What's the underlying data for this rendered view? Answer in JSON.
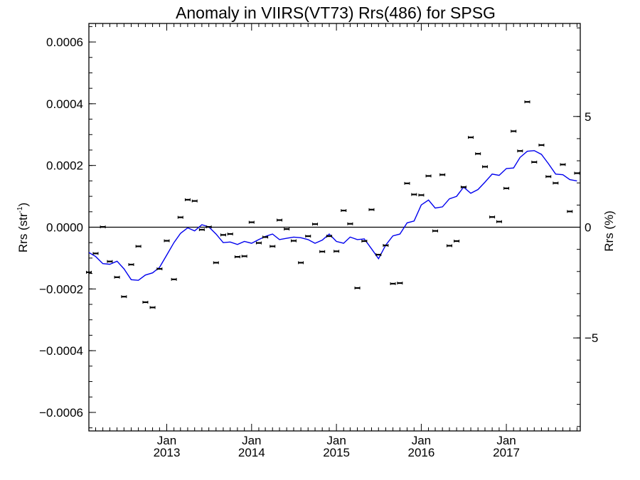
{
  "chart_data": {
    "type": "scatter",
    "title": "Anomaly in VIIRS(VT73) Rrs(486) for SPSG",
    "ylabel": "Rrs (str",
    "ylabel_sup": "-1",
    "ylabel_close": ")",
    "y2label": "Rrs (%)",
    "xlim": [
      "2012-02-01",
      "2017-11-15"
    ],
    "ylim": [
      -0.00066,
      0.00066
    ],
    "y2lim": [
      -9.2,
      9.2
    ],
    "grid": false,
    "y_ticks": [
      {
        "value": 0.0006,
        "label": "0.0006"
      },
      {
        "value": 0.0004,
        "label": "0.0004"
      },
      {
        "value": 0.0002,
        "label": "0.0002"
      },
      {
        "value": 0.0,
        "label": "0.0000"
      },
      {
        "value": -0.0002,
        "label": "−0.0002"
      },
      {
        "value": -0.0004,
        "label": "−0.0004"
      },
      {
        "value": -0.0006,
        "label": "−0.0006"
      }
    ],
    "y2_ticks": [
      {
        "value": 5,
        "label": "5"
      },
      {
        "value": 0,
        "label": "0"
      },
      {
        "value": -5,
        "label": "−5"
      }
    ],
    "x_ticks": [
      {
        "date": "2013-01-01",
        "month": "Jan",
        "year": "2013"
      },
      {
        "date": "2014-01-01",
        "month": "Jan",
        "year": "2014"
      },
      {
        "date": "2015-01-01",
        "month": "Jan",
        "year": "2015"
      },
      {
        "date": "2016-01-01",
        "month": "Jan",
        "year": "2016"
      },
      {
        "date": "2017-01-01",
        "month": "Jan",
        "year": "2017"
      }
    ],
    "series": [
      {
        "kind": "points",
        "color": "#000000",
        "points": [
          {
            "x": "2012-02-01",
            "y": -0.000146
          },
          {
            "x": "2012-03-01",
            "y": -8.5e-05
          },
          {
            "x": "2012-04-01",
            "y": 1e-06
          },
          {
            "x": "2012-05-01",
            "y": -0.000111
          },
          {
            "x": "2012-06-01",
            "y": -0.000162
          },
          {
            "x": "2012-07-01",
            "y": -0.000225
          },
          {
            "x": "2012-08-01",
            "y": -0.000121
          },
          {
            "x": "2012-09-01",
            "y": -6.2e-05
          },
          {
            "x": "2012-10-01",
            "y": -0.000243
          },
          {
            "x": "2012-11-01",
            "y": -0.00026
          },
          {
            "x": "2012-12-01",
            "y": -0.000135
          },
          {
            "x": "2013-01-01",
            "y": -4.4e-05
          },
          {
            "x": "2013-02-01",
            "y": -0.000169
          },
          {
            "x": "2013-03-01",
            "y": 3.2e-05
          },
          {
            "x": "2013-04-01",
            "y": 8.9e-05
          },
          {
            "x": "2013-05-01",
            "y": 8.5e-05
          },
          {
            "x": "2013-06-01",
            "y": -8e-06
          },
          {
            "x": "2013-07-01",
            "y": 1e-06
          },
          {
            "x": "2013-08-01",
            "y": -0.000115
          },
          {
            "x": "2013-09-01",
            "y": -2.5e-05
          },
          {
            "x": "2013-10-01",
            "y": -2.2e-05
          },
          {
            "x": "2013-11-01",
            "y": -9.6e-05
          },
          {
            "x": "2013-12-01",
            "y": -9.4e-05
          },
          {
            "x": "2014-01-01",
            "y": 1.6e-05
          },
          {
            "x": "2014-02-01",
            "y": -5.1e-05
          },
          {
            "x": "2014-03-01",
            "y": -3.2e-05
          },
          {
            "x": "2014-04-01",
            "y": -6.2e-05
          },
          {
            "x": "2014-05-01",
            "y": 2.3e-05
          },
          {
            "x": "2014-06-01",
            "y": -6e-06
          },
          {
            "x": "2014-07-01",
            "y": -4.4e-05
          },
          {
            "x": "2014-08-01",
            "y": -0.000115
          },
          {
            "x": "2014-09-01",
            "y": -2.9e-05
          },
          {
            "x": "2014-10-01",
            "y": 1e-05
          },
          {
            "x": "2014-11-01",
            "y": -7.9e-05
          },
          {
            "x": "2014-12-01",
            "y": -2.9e-05
          },
          {
            "x": "2015-01-01",
            "y": -7.8e-05
          },
          {
            "x": "2015-02-01",
            "y": 5.4e-05
          },
          {
            "x": "2015-03-01",
            "y": 1.1e-05
          },
          {
            "x": "2015-04-01",
            "y": -0.000197
          },
          {
            "x": "2015-05-01",
            "y": -4.5e-05
          },
          {
            "x": "2015-06-01",
            "y": 5.7e-05
          },
          {
            "x": "2015-07-01",
            "y": -8.9e-05
          },
          {
            "x": "2015-08-01",
            "y": -5.9e-05
          },
          {
            "x": "2015-09-01",
            "y": -0.000183
          },
          {
            "x": "2015-10-01",
            "y": -0.000181
          },
          {
            "x": "2015-11-01",
            "y": 0.000142
          },
          {
            "x": "2015-12-01",
            "y": 0.000106
          },
          {
            "x": "2016-01-01",
            "y": 0.000104
          },
          {
            "x": "2016-02-01",
            "y": 0.000166
          },
          {
            "x": "2016-03-01",
            "y": -1.2e-05
          },
          {
            "x": "2016-04-01",
            "y": 0.00017
          },
          {
            "x": "2016-05-01",
            "y": -6e-05
          },
          {
            "x": "2016-06-01",
            "y": -4.5e-05
          },
          {
            "x": "2016-07-01",
            "y": 0.00013
          },
          {
            "x": "2016-08-01",
            "y": 0.000291
          },
          {
            "x": "2016-09-01",
            "y": 0.000238
          },
          {
            "x": "2016-10-01",
            "y": 0.000196
          },
          {
            "x": "2016-11-01",
            "y": 3.3e-05
          },
          {
            "x": "2016-12-01",
            "y": 1.8e-05
          },
          {
            "x": "2017-01-01",
            "y": 0.000126
          },
          {
            "x": "2017-02-01",
            "y": 0.000311
          },
          {
            "x": "2017-03-01",
            "y": 0.000247
          },
          {
            "x": "2017-04-01",
            "y": 0.000406
          },
          {
            "x": "2017-05-01",
            "y": 0.000211
          },
          {
            "x": "2017-06-01",
            "y": 0.000266
          },
          {
            "x": "2017-07-01",
            "y": 0.000164
          },
          {
            "x": "2017-08-01",
            "y": 0.000143
          },
          {
            "x": "2017-09-01",
            "y": 0.000203
          },
          {
            "x": "2017-10-01",
            "y": 5.1e-05
          },
          {
            "x": "2017-11-01",
            "y": 0.000175
          }
        ]
      },
      {
        "kind": "line",
        "color": "#0000ee",
        "points": [
          {
            "x": "2012-02-01",
            "y": -8.2e-05
          },
          {
            "x": "2012-03-01",
            "y": -9.5e-05
          },
          {
            "x": "2012-04-01",
            "y": -0.000118
          },
          {
            "x": "2012-05-01",
            "y": -0.00012
          },
          {
            "x": "2012-06-01",
            "y": -0.00011
          },
          {
            "x": "2012-07-01",
            "y": -0.000135
          },
          {
            "x": "2012-08-01",
            "y": -0.00017
          },
          {
            "x": "2012-09-01",
            "y": -0.000172
          },
          {
            "x": "2012-10-01",
            "y": -0.000155
          },
          {
            "x": "2012-11-01",
            "y": -0.000148
          },
          {
            "x": "2012-12-01",
            "y": -0.00013
          },
          {
            "x": "2013-01-01",
            "y": -9e-05
          },
          {
            "x": "2013-02-01",
            "y": -5e-05
          },
          {
            "x": "2013-03-01",
            "y": -2e-05
          },
          {
            "x": "2013-04-01",
            "y": -2e-06
          },
          {
            "x": "2013-05-01",
            "y": -1.2e-05
          },
          {
            "x": "2013-06-01",
            "y": 8e-06
          },
          {
            "x": "2013-07-01",
            "y": 1e-06
          },
          {
            "x": "2013-08-01",
            "y": -2.2e-05
          },
          {
            "x": "2013-09-01",
            "y": -5e-05
          },
          {
            "x": "2013-10-01",
            "y": -4.8e-05
          },
          {
            "x": "2013-11-01",
            "y": -5.6e-05
          },
          {
            "x": "2013-12-01",
            "y": -4.6e-05
          },
          {
            "x": "2014-01-01",
            "y": -5.2e-05
          },
          {
            "x": "2014-02-01",
            "y": -4e-05
          },
          {
            "x": "2014-03-01",
            "y": -3e-05
          },
          {
            "x": "2014-04-01",
            "y": -2.2e-05
          },
          {
            "x": "2014-05-01",
            "y": -4e-05
          },
          {
            "x": "2014-06-01",
            "y": -3.6e-05
          },
          {
            "x": "2014-07-01",
            "y": -3.2e-05
          },
          {
            "x": "2014-08-01",
            "y": -3.4e-05
          },
          {
            "x": "2014-09-01",
            "y": -4e-05
          },
          {
            "x": "2014-10-01",
            "y": -5.2e-05
          },
          {
            "x": "2014-11-01",
            "y": -4.2e-05
          },
          {
            "x": "2014-12-01",
            "y": -2.2e-05
          },
          {
            "x": "2015-01-01",
            "y": -4.6e-05
          },
          {
            "x": "2015-02-01",
            "y": -5.2e-05
          },
          {
            "x": "2015-03-01",
            "y": -3.2e-05
          },
          {
            "x": "2015-04-01",
            "y": -4e-05
          },
          {
            "x": "2015-05-01",
            "y": -3.8e-05
          },
          {
            "x": "2015-06-01",
            "y": -7e-05
          },
          {
            "x": "2015-07-01",
            "y": -0.000102
          },
          {
            "x": "2015-08-01",
            "y": -5.8e-05
          },
          {
            "x": "2015-09-01",
            "y": -2.8e-05
          },
          {
            "x": "2015-10-01",
            "y": -2.2e-05
          },
          {
            "x": "2015-11-01",
            "y": 1.4e-05
          },
          {
            "x": "2015-12-01",
            "y": 2e-05
          },
          {
            "x": "2016-01-01",
            "y": 7.2e-05
          },
          {
            "x": "2016-02-01",
            "y": 8.8e-05
          },
          {
            "x": "2016-03-01",
            "y": 6.2e-05
          },
          {
            "x": "2016-04-01",
            "y": 6.6e-05
          },
          {
            "x": "2016-05-01",
            "y": 9.2e-05
          },
          {
            "x": "2016-06-01",
            "y": 0.0001
          },
          {
            "x": "2016-07-01",
            "y": 0.00013
          },
          {
            "x": "2016-08-01",
            "y": 0.00011
          },
          {
            "x": "2016-09-01",
            "y": 0.000122
          },
          {
            "x": "2016-10-01",
            "y": 0.000146
          },
          {
            "x": "2016-11-01",
            "y": 0.000172
          },
          {
            "x": "2016-12-01",
            "y": 0.000168
          },
          {
            "x": "2017-01-01",
            "y": 0.00019
          },
          {
            "x": "2017-02-01",
            "y": 0.000192
          },
          {
            "x": "2017-03-01",
            "y": 0.000226
          },
          {
            "x": "2017-04-01",
            "y": 0.000246
          },
          {
            "x": "2017-05-01",
            "y": 0.000248
          },
          {
            "x": "2017-06-01",
            "y": 0.000236
          },
          {
            "x": "2017-07-01",
            "y": 0.000206
          },
          {
            "x": "2017-08-01",
            "y": 0.000172
          },
          {
            "x": "2017-09-01",
            "y": 0.00017
          },
          {
            "x": "2017-10-01",
            "y": 0.000154
          },
          {
            "x": "2017-11-01",
            "y": 0.00015
          }
        ]
      }
    ]
  }
}
